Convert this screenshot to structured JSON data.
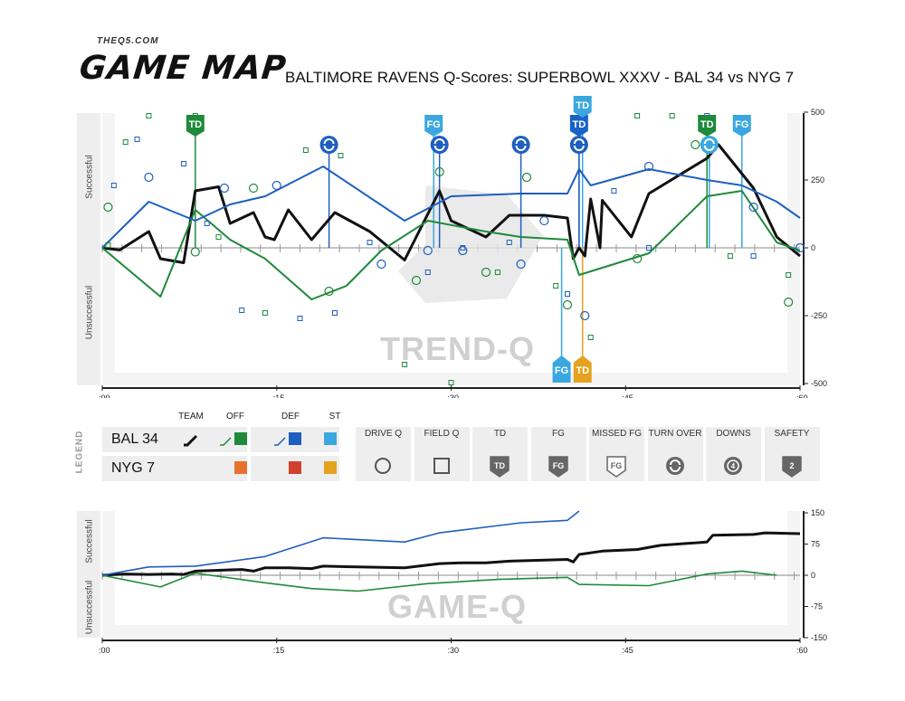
{
  "brand": {
    "site": "THEQ5.COM",
    "name": "GAME MAP"
  },
  "title": "BALTIMORE RAVENS Q-Scores: SUPERBOWL XXXV - BAL 34 vs NYG 7",
  "colors": {
    "team": "#111111",
    "offense": "#1e8a3a",
    "defense": "#1e5fbf",
    "special_teams": "#3aa7e0",
    "opp_offense": "#e8712e",
    "opp_defense": "#d2402f",
    "opp_special": "#e5a21f",
    "td_dark": "#1a62c8"
  },
  "top_chart": {
    "side_labels": {
      "pos": "Successful",
      "neg": "Unsuccessful"
    },
    "x_ticks": [
      ":00",
      ":15",
      ":30",
      ":45",
      ":60"
    ],
    "y_ticks": [
      "500",
      "250",
      "0",
      "-250",
      "-500"
    ],
    "watermark": "TREND-Q",
    "event_labels": {
      "td": "TD",
      "fg": "FG"
    }
  },
  "legend": {
    "section": "LEGEND",
    "columns": [
      "TEAM",
      "OFF",
      "DEF",
      "ST"
    ],
    "teams": [
      "BAL 34",
      "NYG 7"
    ],
    "symbols": [
      {
        "label": "DRIVE Q",
        "icon": "circle-icon"
      },
      {
        "label": "FIELD Q",
        "icon": "square-icon"
      },
      {
        "label": "TD",
        "icon": "td-shield-icon"
      },
      {
        "label": "FG",
        "icon": "fg-shield-icon"
      },
      {
        "label": "MISSED FG",
        "icon": "missed-fg-icon"
      },
      {
        "label": "TURN OVER",
        "icon": "turnover-icon"
      },
      {
        "label": "DOWNS",
        "icon": "downs-icon"
      },
      {
        "label": "SAFETY",
        "icon": "safety-icon"
      }
    ],
    "icon_text": {
      "td": "TD",
      "fg": "FG",
      "downs": "4",
      "safety": "2"
    }
  },
  "bottom_chart": {
    "side_labels": {
      "pos": "Successful",
      "neg": "Unsuccessful"
    },
    "x_ticks": [
      ":00",
      ":15",
      ":30",
      ":45",
      ":60"
    ],
    "y_ticks": [
      "150",
      "75",
      "0",
      "-75",
      "-150"
    ],
    "watermark": "GAME-Q"
  },
  "chart_data": [
    {
      "type": "line",
      "title": "TREND-Q",
      "x_range": [
        0,
        60
      ],
      "ylim": [
        -500,
        500
      ],
      "series": [
        {
          "name": "TEAM",
          "points": [
            [
              0,
              0
            ],
            [
              1.5,
              -8
            ],
            [
              4,
              60
            ],
            [
              5,
              -40
            ],
            [
              7,
              -55
            ],
            [
              8,
              210
            ],
            [
              10,
              225
            ],
            [
              11,
              90
            ],
            [
              13,
              130
            ],
            [
              14,
              40
            ],
            [
              14.8,
              30
            ],
            [
              16,
              140
            ],
            [
              18,
              30
            ],
            [
              20,
              130
            ],
            [
              23,
              60
            ],
            [
              26,
              -45
            ],
            [
              29,
              210
            ],
            [
              30,
              100
            ],
            [
              33,
              40
            ],
            [
              35,
              120
            ],
            [
              38,
              120
            ],
            [
              40,
              110
            ],
            [
              40.5,
              -40
            ],
            [
              41,
              0
            ],
            [
              41.5,
              -30
            ],
            [
              42,
              180
            ],
            [
              42.8,
              0
            ],
            [
              43,
              175
            ],
            [
              45.5,
              40
            ],
            [
              47,
              200
            ],
            [
              52,
              330
            ],
            [
              53,
              380
            ],
            [
              56,
              220
            ],
            [
              58,
              40
            ],
            [
              60,
              -30
            ]
          ]
        },
        {
          "name": "OFF",
          "points": [
            [
              0,
              0
            ],
            [
              5,
              -180
            ],
            [
              8,
              140
            ],
            [
              11,
              30
            ],
            [
              14,
              -40
            ],
            [
              18,
              -190
            ],
            [
              21,
              -140
            ],
            [
              24,
              -10
            ],
            [
              28,
              100
            ],
            [
              33,
              60
            ],
            [
              36,
              40
            ],
            [
              40,
              30
            ],
            [
              41,
              -100
            ],
            [
              47,
              -20
            ],
            [
              52,
              190
            ],
            [
              55,
              210
            ],
            [
              58,
              20
            ],
            [
              60,
              -10
            ]
          ]
        },
        {
          "name": "DEF",
          "points": [
            [
              0,
              0
            ],
            [
              4,
              170
            ],
            [
              8,
              100
            ],
            [
              11,
              160
            ],
            [
              14,
              190
            ],
            [
              19,
              300
            ],
            [
              26,
              100
            ],
            [
              30,
              190
            ],
            [
              36,
              200
            ],
            [
              40,
              200
            ],
            [
              41,
              290
            ],
            [
              42,
              230
            ],
            [
              47,
              290
            ],
            [
              52,
              250
            ],
            [
              55,
              230
            ],
            [
              58,
              170
            ],
            [
              60,
              110
            ]
          ]
        }
      ],
      "drive_q": [
        [
          0.5,
          150
        ],
        [
          4,
          260
        ],
        [
          8,
          -15
        ],
        [
          10.5,
          220
        ],
        [
          13,
          220
        ],
        [
          15,
          230
        ],
        [
          19.5,
          -160
        ],
        [
          24,
          -60
        ],
        [
          27,
          -120
        ],
        [
          28,
          -10
        ],
        [
          29,
          280
        ],
        [
          31,
          -10
        ],
        [
          33,
          -90
        ],
        [
          36,
          -60
        ],
        [
          36.5,
          260
        ],
        [
          38,
          100
        ],
        [
          40,
          -210
        ],
        [
          41.5,
          -250
        ],
        [
          46,
          -40
        ],
        [
          47,
          300
        ],
        [
          51,
          380
        ],
        [
          56,
          150
        ],
        [
          59,
          -200
        ],
        [
          60,
          0
        ]
      ],
      "field_q": [
        [
          0.5,
          10
        ],
        [
          1,
          230
        ],
        [
          2,
          390
        ],
        [
          3,
          400
        ],
        [
          4,
          560
        ],
        [
          7,
          310
        ],
        [
          8,
          510
        ],
        [
          9,
          90
        ],
        [
          10,
          40
        ],
        [
          12,
          -230
        ],
        [
          14,
          -240
        ],
        [
          17,
          -260
        ],
        [
          17.5,
          360
        ],
        [
          20,
          -240
        ],
        [
          20.5,
          340
        ],
        [
          23,
          20
        ],
        [
          26,
          -430
        ],
        [
          28,
          -90
        ],
        [
          30,
          -500
        ],
        [
          31,
          0
        ],
        [
          34,
          -90
        ],
        [
          35,
          20
        ],
        [
          39,
          -140
        ],
        [
          40,
          -170
        ],
        [
          42,
          -330
        ],
        [
          44,
          210
        ],
        [
          46,
          520
        ],
        [
          47,
          0
        ],
        [
          49,
          570
        ],
        [
          52,
          520
        ],
        [
          54,
          -30
        ],
        [
          56,
          -30
        ],
        [
          59,
          -100
        ]
      ],
      "events": [
        {
          "type": "td",
          "team": "BAL",
          "unit": "off",
          "x": 8,
          "y": 450
        },
        {
          "type": "fg",
          "team": "BAL",
          "unit": "st",
          "x": 28.5,
          "y": 450
        },
        {
          "type": "turnover",
          "unit": "def",
          "x": 19.5,
          "y": 380
        },
        {
          "type": "turnover",
          "unit": "def",
          "x": 29,
          "y": 380
        },
        {
          "type": "turnover",
          "unit": "def",
          "x": 36,
          "y": 380
        },
        {
          "type": "turnover",
          "unit": "def",
          "x": 41,
          "y": 380
        },
        {
          "type": "td",
          "team": "BAL",
          "unit": "def",
          "x": 41,
          "y": 450
        },
        {
          "type": "td",
          "team": "BAL",
          "unit": "st",
          "x": 41.3,
          "y": 520
        },
        {
          "type": "td",
          "team": "BAL",
          "unit": "off",
          "x": 52,
          "y": 450
        },
        {
          "type": "fg",
          "team": "BAL",
          "unit": "st",
          "x": 55,
          "y": 450
        },
        {
          "type": "turnover",
          "unit": "st",
          "x": 52.2,
          "y": 380
        },
        {
          "type": "fg",
          "team": "NYG",
          "unit": "st",
          "x": 39.5,
          "y": -470
        },
        {
          "type": "td",
          "team": "NYG",
          "unit": "st",
          "x": 41.3,
          "y": -470
        }
      ]
    },
    {
      "type": "line",
      "title": "GAME-Q",
      "x_range": [
        0,
        60
      ],
      "ylim": [
        -150,
        150
      ],
      "series": [
        {
          "name": "TEAM",
          "points": [
            [
              0,
              0
            ],
            [
              2,
              3
            ],
            [
              4,
              2
            ],
            [
              6,
              3
            ],
            [
              7,
              2
            ],
            [
              8,
              10
            ],
            [
              10,
              12
            ],
            [
              12,
              14
            ],
            [
              13,
              10
            ],
            [
              14,
              18
            ],
            [
              16,
              18
            ],
            [
              18,
              16
            ],
            [
              19,
              22
            ],
            [
              22,
              20
            ],
            [
              26,
              18
            ],
            [
              29,
              28
            ],
            [
              31,
              30
            ],
            [
              33,
              30
            ],
            [
              35,
              34
            ],
            [
              40,
              38
            ],
            [
              40.5,
              32
            ],
            [
              41,
              50
            ],
            [
              43,
              58
            ],
            [
              46,
              62
            ],
            [
              48,
              72
            ],
            [
              52,
              80
            ],
            [
              52.5,
              96
            ],
            [
              56,
              98
            ],
            [
              57,
              102
            ],
            [
              60,
              100
            ]
          ]
        },
        {
          "name": "OFF",
          "points": [
            [
              0,
              0
            ],
            [
              5,
              -28
            ],
            [
              8,
              5
            ],
            [
              14,
              -18
            ],
            [
              18,
              -32
            ],
            [
              22,
              -38
            ],
            [
              28,
              -20
            ],
            [
              34,
              -10
            ],
            [
              40,
              -5
            ],
            [
              41,
              -22
            ],
            [
              47,
              -25
            ],
            [
              52,
              3
            ],
            [
              55,
              10
            ],
            [
              58,
              0
            ]
          ]
        },
        {
          "name": "DEF",
          "points": [
            [
              0,
              0
            ],
            [
              4,
              20
            ],
            [
              8,
              22
            ],
            [
              14,
              45
            ],
            [
              19,
              90
            ],
            [
              26,
              80
            ],
            [
              29,
              102
            ],
            [
              36,
              126
            ],
            [
              40,
              132
            ],
            [
              41,
              160
            ]
          ]
        }
      ]
    }
  ]
}
